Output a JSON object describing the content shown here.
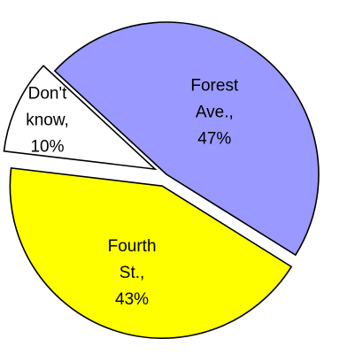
{
  "chart_data": {
    "type": "pie",
    "title": "",
    "slices": [
      {
        "category": "Forest Ave.",
        "value": 47,
        "label_lines": [
          "Forest",
          "Ave.,",
          "47%"
        ],
        "color": "#9999FF",
        "exploded": false
      },
      {
        "category": "Fourth St.",
        "value": 43,
        "label_lines": [
          "Fourth",
          "St.,",
          "43%"
        ],
        "color": "#FFFF00",
        "exploded": true
      },
      {
        "category": "Don't know",
        "value": 10,
        "label_lines": [
          "Don't",
          "know,",
          "10%"
        ],
        "color": "#FFFFFF",
        "exploded": true
      }
    ],
    "legend": "none",
    "data_labels": "inside"
  }
}
